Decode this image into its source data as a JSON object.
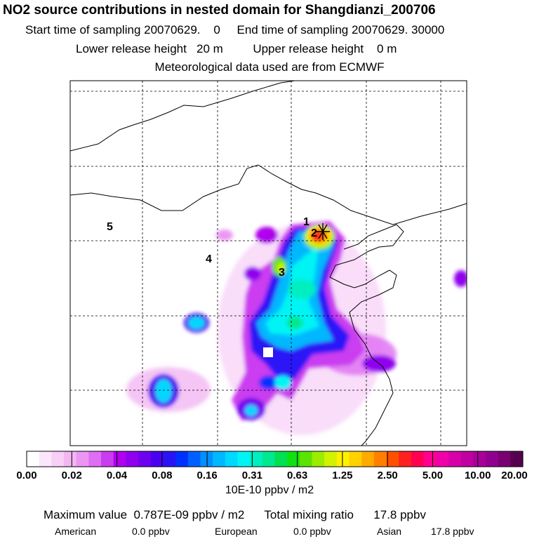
{
  "header": {
    "title": "NO2 source contributions in nested domain for Shangdianzi_200706",
    "start_label": "Start time of sampling",
    "start_value": "20070629.    0",
    "end_label": "End time of sampling",
    "end_value": "20070629. 30000",
    "lower_label": "Lower release height",
    "lower_value": "20 m",
    "upper_label": "Upper release height",
    "upper_value": "0 m",
    "met_line": "Meteorological data used are from ECMWF"
  },
  "map": {
    "region_labels": [
      "1",
      "2",
      "3",
      "4",
      "5"
    ],
    "station_marker": "asterisk-icon"
  },
  "colorbar": {
    "tick_labels": [
      "0.00",
      "0.02",
      "0.04",
      "0.08",
      "0.16",
      "0.31",
      "0.63",
      "1.25",
      "2.50",
      "5.00",
      "10.00",
      "20.00"
    ],
    "colors": [
      "#ffffff",
      "#fbe7fb",
      "#f7cff7",
      "#f2b6f2",
      "#eb96f3",
      "#de6ef3",
      "#ca3cf0",
      "#b000ee",
      "#8f00ee",
      "#6e00ee",
      "#4b00f0",
      "#2a14f6",
      "#0030ff",
      "#0060ff",
      "#0090ff",
      "#00b8ff",
      "#00d8ff",
      "#00f4f4",
      "#00eec0",
      "#00e890",
      "#00e050",
      "#10e010",
      "#5ae400",
      "#9cec00",
      "#d2f200",
      "#fff000",
      "#ffd200",
      "#ffaa00",
      "#ff8000",
      "#ff5000",
      "#ff2020",
      "#ff0050",
      "#ff0090",
      "#f000a8",
      "#d800a8",
      "#c000a0",
      "#a80098",
      "#900090",
      "#780070",
      "#580050"
    ],
    "unit": "10E-10 ppbv / m2"
  },
  "stats": {
    "max_label": "Maximum value",
    "max_value": "0.787E-09 ppbv / m2",
    "total_label": "Total mixing ratio",
    "total_value": "17.8 ppbv",
    "american_label": "American",
    "american_value": "0.0 ppbv",
    "european_label": "European",
    "european_value": "0.0 ppbv",
    "asian_label": "Asian",
    "asian_value": "17.8 ppbv"
  }
}
